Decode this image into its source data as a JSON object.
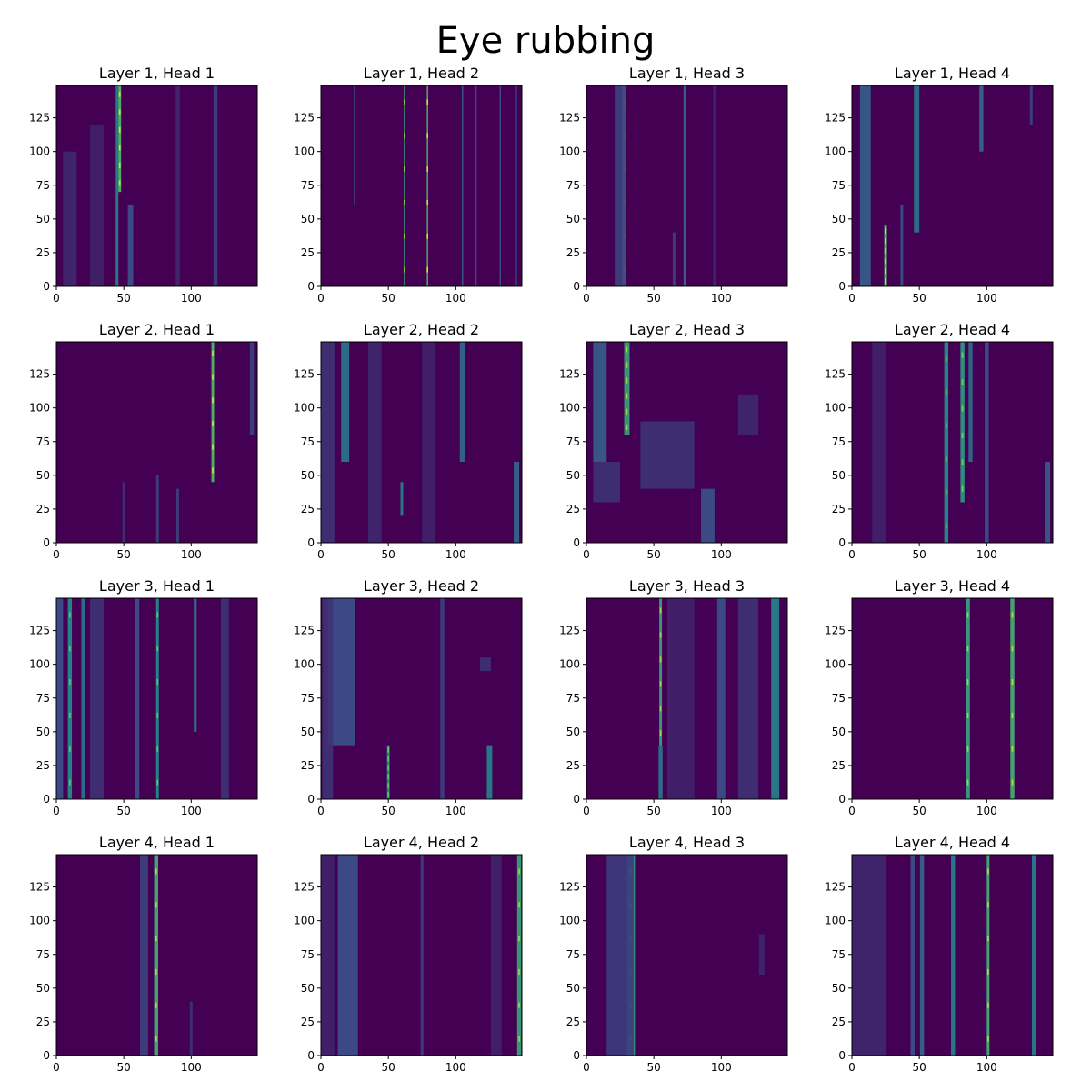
{
  "chart_data": {
    "type": "heatmap",
    "title": "Eye rubbing",
    "colormap": "viridis",
    "background_color": "#440154",
    "xlim": [
      0,
      149
    ],
    "ylim": [
      0,
      149
    ],
    "x_ticks": [
      0,
      50,
      100
    ],
    "y_ticks": [
      0,
      25,
      50,
      75,
      100,
      125
    ],
    "panels": [
      {
        "title": "Layer 1, Head 1",
        "stripes": [
          {
            "x": 45,
            "w": 2,
            "i": 0.45,
            "y0": 0,
            "y1": 149
          },
          {
            "x": 47,
            "w": 2,
            "i": 0.7,
            "y0": 70,
            "y1": 149
          },
          {
            "x": 55,
            "w": 4,
            "i": 0.25,
            "y0": 0,
            "y1": 60
          },
          {
            "x": 10,
            "w": 10,
            "i": 0.12,
            "y0": 0,
            "y1": 100
          },
          {
            "x": 30,
            "w": 10,
            "i": 0.1,
            "y0": 0,
            "y1": 120
          },
          {
            "x": 90,
            "w": 3,
            "i": 0.12,
            "y0": 0,
            "y1": 149
          },
          {
            "x": 118,
            "w": 3,
            "i": 0.2,
            "y0": 0,
            "y1": 149
          }
        ]
      },
      {
        "title": "Layer 1, Head 2",
        "stripes": [
          {
            "x": 62,
            "w": 1,
            "i": 0.6,
            "y0": 0,
            "y1": 149
          },
          {
            "x": 79,
            "w": 1,
            "i": 0.7,
            "y0": 0,
            "y1": 149
          },
          {
            "x": 25,
            "w": 1,
            "i": 0.3,
            "y0": 60,
            "y1": 149
          },
          {
            "x": 105,
            "w": 1,
            "i": 0.3,
            "y0": 0,
            "y1": 149
          },
          {
            "x": 115,
            "w": 1,
            "i": 0.25,
            "y0": 0,
            "y1": 149
          },
          {
            "x": 133,
            "w": 1,
            "i": 0.25,
            "y0": 0,
            "y1": 149
          },
          {
            "x": 145,
            "w": 1,
            "i": 0.2,
            "y0": 0,
            "y1": 149
          }
        ]
      },
      {
        "title": "Layer 1, Head 3",
        "stripes": [
          {
            "x": 28,
            "w": 3,
            "i": 0.7,
            "y0": 0,
            "y1": 149
          },
          {
            "x": 25,
            "w": 8,
            "i": 0.2,
            "y0": 0,
            "y1": 149
          },
          {
            "x": 73,
            "w": 2,
            "i": 0.35,
            "y0": 0,
            "y1": 149
          },
          {
            "x": 65,
            "w": 2,
            "i": 0.2,
            "y0": 0,
            "y1": 40
          },
          {
            "x": 95,
            "w": 2,
            "i": 0.12,
            "y0": 0,
            "y1": 149
          }
        ]
      },
      {
        "title": "Layer 1, Head 4",
        "stripes": [
          {
            "x": 25,
            "w": 2,
            "i": 0.75,
            "y0": 0,
            "y1": 45
          },
          {
            "x": 48,
            "w": 4,
            "i": 0.4,
            "y0": 40,
            "y1": 149
          },
          {
            "x": 10,
            "w": 8,
            "i": 0.3,
            "y0": 0,
            "y1": 149
          },
          {
            "x": 96,
            "w": 3,
            "i": 0.35,
            "y0": 100,
            "y1": 149
          },
          {
            "x": 37,
            "w": 2,
            "i": 0.25,
            "y0": 0,
            "y1": 60
          },
          {
            "x": 133,
            "w": 2,
            "i": 0.2,
            "y0": 120,
            "y1": 149
          }
        ]
      },
      {
        "title": "Layer 2, Head 1",
        "stripes": [
          {
            "x": 116,
            "w": 2,
            "i": 0.7,
            "y0": 45,
            "y1": 149
          },
          {
            "x": 75,
            "w": 2,
            "i": 0.2,
            "y0": 0,
            "y1": 50
          },
          {
            "x": 90,
            "w": 2,
            "i": 0.2,
            "y0": 0,
            "y1": 40
          },
          {
            "x": 145,
            "w": 3,
            "i": 0.2,
            "y0": 80,
            "y1": 149
          },
          {
            "x": 50,
            "w": 2,
            "i": 0.15,
            "y0": 0,
            "y1": 45
          }
        ]
      },
      {
        "title": "Layer 2, Head 2",
        "stripes": [
          {
            "x": 18,
            "w": 6,
            "i": 0.4,
            "y0": 60,
            "y1": 149
          },
          {
            "x": 60,
            "w": 2,
            "i": 0.45,
            "y0": 20,
            "y1": 45
          },
          {
            "x": 105,
            "w": 4,
            "i": 0.35,
            "y0": 60,
            "y1": 149
          },
          {
            "x": 145,
            "w": 4,
            "i": 0.35,
            "y0": 0,
            "y1": 60
          },
          {
            "x": 5,
            "w": 10,
            "i": 0.15,
            "y0": 0,
            "y1": 149
          },
          {
            "x": 40,
            "w": 10,
            "i": 0.12,
            "y0": 0,
            "y1": 149
          },
          {
            "x": 80,
            "w": 10,
            "i": 0.1,
            "y0": 0,
            "y1": 149
          }
        ]
      },
      {
        "title": "Layer 2, Head 3",
        "stripes": [
          {
            "x": 30,
            "w": 4,
            "i": 0.6,
            "y0": 80,
            "y1": 149
          },
          {
            "x": 10,
            "w": 10,
            "i": 0.3,
            "y0": 60,
            "y1": 149
          },
          {
            "x": 60,
            "w": 40,
            "i": 0.15,
            "y0": 40,
            "y1": 90
          },
          {
            "x": 90,
            "w": 10,
            "i": 0.25,
            "y0": 0,
            "y1": 40
          },
          {
            "x": 15,
            "w": 20,
            "i": 0.15,
            "y0": 30,
            "y1": 60
          },
          {
            "x": 120,
            "w": 15,
            "i": 0.12,
            "y0": 80,
            "y1": 110
          }
        ]
      },
      {
        "title": "Layer 2, Head 4",
        "stripes": [
          {
            "x": 70,
            "w": 3,
            "i": 0.5,
            "y0": 0,
            "y1": 149
          },
          {
            "x": 82,
            "w": 3,
            "i": 0.55,
            "y0": 30,
            "y1": 149
          },
          {
            "x": 88,
            "w": 3,
            "i": 0.35,
            "y0": 60,
            "y1": 149
          },
          {
            "x": 100,
            "w": 3,
            "i": 0.25,
            "y0": 0,
            "y1": 149
          },
          {
            "x": 145,
            "w": 4,
            "i": 0.3,
            "y0": 0,
            "y1": 60
          },
          {
            "x": 20,
            "w": 10,
            "i": 0.1,
            "y0": 0,
            "y1": 149
          }
        ]
      },
      {
        "title": "Layer 3, Head 1",
        "stripes": [
          {
            "x": 10,
            "w": 3,
            "i": 0.5,
            "y0": 0,
            "y1": 149
          },
          {
            "x": 20,
            "w": 3,
            "i": 0.4,
            "y0": 0,
            "y1": 149
          },
          {
            "x": 75,
            "w": 2,
            "i": 0.5,
            "y0": 0,
            "y1": 149
          },
          {
            "x": 103,
            "w": 2,
            "i": 0.45,
            "y0": 50,
            "y1": 149
          },
          {
            "x": 2,
            "w": 6,
            "i": 0.25,
            "y0": 0,
            "y1": 149
          },
          {
            "x": 30,
            "w": 10,
            "i": 0.15,
            "y0": 0,
            "y1": 149
          },
          {
            "x": 60,
            "w": 3,
            "i": 0.25,
            "y0": 0,
            "y1": 149
          },
          {
            "x": 125,
            "w": 6,
            "i": 0.15,
            "y0": 0,
            "y1": 149
          }
        ]
      },
      {
        "title": "Layer 3, Head 2",
        "stripes": [
          {
            "x": 50,
            "w": 2,
            "i": 0.5,
            "y0": 0,
            "y1": 40
          },
          {
            "x": 125,
            "w": 4,
            "i": 0.45,
            "y0": 0,
            "y1": 40
          },
          {
            "x": 15,
            "w": 20,
            "i": 0.25,
            "y0": 40,
            "y1": 149
          },
          {
            "x": 5,
            "w": 8,
            "i": 0.15,
            "y0": 0,
            "y1": 149
          },
          {
            "x": 90,
            "w": 3,
            "i": 0.2,
            "y0": 0,
            "y1": 149
          },
          {
            "x": 122,
            "w": 8,
            "i": 0.15,
            "y0": 95,
            "y1": 105
          }
        ]
      },
      {
        "title": "Layer 3, Head 3",
        "stripes": [
          {
            "x": 55,
            "w": 2,
            "i": 0.6,
            "y0": 40,
            "y1": 149
          },
          {
            "x": 55,
            "w": 3,
            "i": 0.4,
            "y0": 0,
            "y1": 40
          },
          {
            "x": 140,
            "w": 6,
            "i": 0.45,
            "y0": 0,
            "y1": 149
          },
          {
            "x": 100,
            "w": 6,
            "i": 0.25,
            "y0": 0,
            "y1": 149
          },
          {
            "x": 120,
            "w": 15,
            "i": 0.15,
            "y0": 0,
            "y1": 149
          },
          {
            "x": 70,
            "w": 20,
            "i": 0.1,
            "y0": 0,
            "y1": 149
          }
        ]
      },
      {
        "title": "Layer 3, Head 4",
        "stripes": [
          {
            "x": 86,
            "w": 3,
            "i": 0.6,
            "y0": 0,
            "y1": 149
          },
          {
            "x": 119,
            "w": 3,
            "i": 0.65,
            "y0": 0,
            "y1": 149
          }
        ]
      },
      {
        "title": "Layer 4, Head 1",
        "stripes": [
          {
            "x": 74,
            "w": 3,
            "i": 0.65,
            "y0": 0,
            "y1": 149
          },
          {
            "x": 65,
            "w": 6,
            "i": 0.2,
            "y0": 0,
            "y1": 149
          },
          {
            "x": 100,
            "w": 2,
            "i": 0.15,
            "y0": 0,
            "y1": 40
          }
        ]
      },
      {
        "title": "Layer 4, Head 2",
        "stripes": [
          {
            "x": 147,
            "w": 3,
            "i": 0.6,
            "y0": 0,
            "y1": 149
          },
          {
            "x": 20,
            "w": 15,
            "i": 0.25,
            "y0": 0,
            "y1": 149
          },
          {
            "x": 5,
            "w": 10,
            "i": 0.1,
            "y0": 0,
            "y1": 149
          },
          {
            "x": 75,
            "w": 2,
            "i": 0.2,
            "y0": 0,
            "y1": 149
          },
          {
            "x": 130,
            "w": 8,
            "i": 0.1,
            "y0": 0,
            "y1": 149
          }
        ]
      },
      {
        "title": "Layer 4, Head 3",
        "stripes": [
          {
            "x": 33,
            "w": 6,
            "i": 0.55,
            "y0": 0,
            "y1": 149
          },
          {
            "x": 25,
            "w": 20,
            "i": 0.18,
            "y0": 0,
            "y1": 149
          },
          {
            "x": 130,
            "w": 4,
            "i": 0.12,
            "y0": 60,
            "y1": 90
          }
        ]
      },
      {
        "title": "Layer 4, Head 4",
        "stripes": [
          {
            "x": 101,
            "w": 2,
            "i": 0.65,
            "y0": 0,
            "y1": 149
          },
          {
            "x": 75,
            "w": 3,
            "i": 0.45,
            "y0": 0,
            "y1": 149
          },
          {
            "x": 135,
            "w": 3,
            "i": 0.45,
            "y0": 0,
            "y1": 149
          },
          {
            "x": 52,
            "w": 3,
            "i": 0.35,
            "y0": 0,
            "y1": 149
          },
          {
            "x": 10,
            "w": 30,
            "i": 0.12,
            "y0": 0,
            "y1": 149
          },
          {
            "x": 45,
            "w": 3,
            "i": 0.25,
            "y0": 0,
            "y1": 149
          }
        ]
      }
    ]
  }
}
